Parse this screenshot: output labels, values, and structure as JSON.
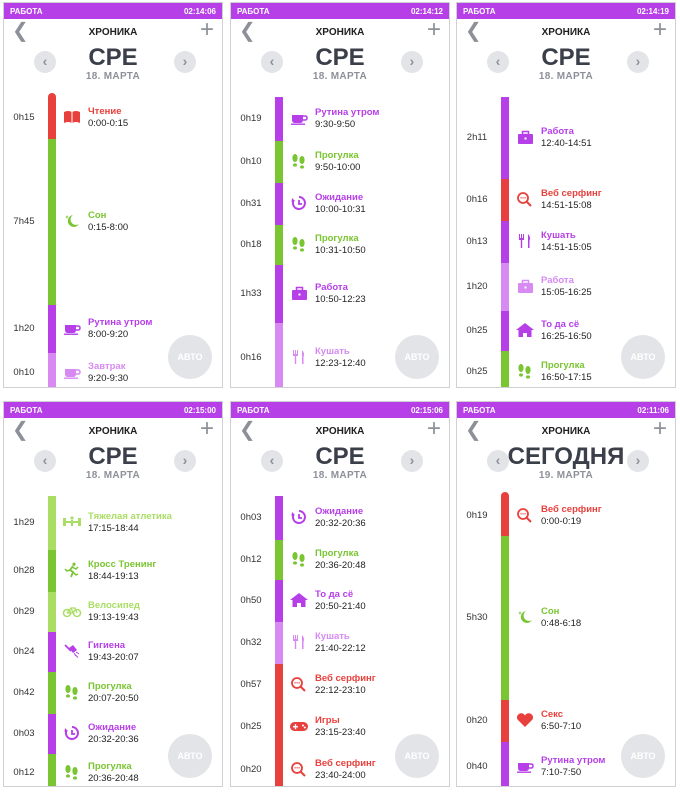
{
  "colors": {
    "purple": "#b63fe8",
    "purple_light": "#d68af2",
    "green": "#7ac532",
    "green_light": "#a9dd63",
    "red": "#e8403c",
    "red_light": "#f06a6a"
  },
  "screens": [
    {
      "status_left": "РАБОТА",
      "status_time": "02:14:06",
      "header_title": "ХРОНИКА",
      "day": "СРЕ",
      "date": "18. МАРТА",
      "auto_label": "АВТО",
      "rows": [
        {
          "duration": "0h15",
          "name": "Чтение",
          "time": "0:00-0:15",
          "icon": "book-icon",
          "color": "#e8403c",
          "top": 0,
          "h": 42
        },
        {
          "duration": "7h45",
          "name": "Сон",
          "time": "0:15-8:00",
          "icon": "moon-icon",
          "color": "#7ac532",
          "top": 42,
          "h": 166
        },
        {
          "duration": "1h20",
          "name": "Рутина утром",
          "time": "8:00-9:20",
          "icon": "cup-icon",
          "color": "#b63fe8",
          "top": 208,
          "h": 48
        },
        {
          "duration": "0h10",
          "name": "Завтрак",
          "time": "9:20-9:30",
          "icon": "cup-icon",
          "color": "#d68af2",
          "top": 256,
          "h": 40
        }
      ]
    },
    {
      "status_left": "РАБОТА",
      "status_time": "02:14:12",
      "header_title": "ХРОНИКА",
      "day": "СРЕ",
      "date": "18. МАРТА",
      "auto_label": "АВТО",
      "rows": [
        {
          "duration": "0h19",
          "name": "Рутина утром",
          "time": "9:30-9:50",
          "icon": "cup-icon",
          "color": "#b63fe8",
          "top": 0,
          "h": 44
        },
        {
          "duration": "0h10",
          "name": "Прогулка",
          "time": "9:50-10:00",
          "icon": "footsteps-icon",
          "color": "#7ac532",
          "top": 44,
          "h": 42
        },
        {
          "duration": "0h31",
          "name": "Ожидание",
          "time": "10:00-10:31",
          "icon": "clock-icon",
          "color": "#b63fe8",
          "top": 86,
          "h": 42
        },
        {
          "duration": "0h18",
          "name": "Прогулка",
          "time": "10:31-10:50",
          "icon": "footsteps-icon",
          "color": "#7ac532",
          "top": 128,
          "h": 40
        },
        {
          "duration": "1h33",
          "name": "Работа",
          "time": "10:50-12:23",
          "icon": "briefcase-icon",
          "color": "#b63fe8",
          "top": 168,
          "h": 58
        },
        {
          "duration": "0h16",
          "name": "Кушать",
          "time": "12:23-12:40",
          "icon": "cutlery-icon",
          "color": "#d68af2",
          "top": 226,
          "h": 70
        }
      ]
    },
    {
      "status_left": "РАБОТА",
      "status_time": "02:14:19",
      "header_title": "ХРОНИКА",
      "day": "СРЕ",
      "date": "18. МАРТА",
      "auto_label": "АВТО",
      "rows": [
        {
          "duration": "2h11",
          "name": "Работа",
          "time": "12:40-14:51",
          "icon": "briefcase-icon",
          "color": "#b63fe8",
          "top": 0,
          "h": 82
        },
        {
          "duration": "0h16",
          "name": "Веб серфинг",
          "time": "14:51-15:08",
          "icon": "search-icon",
          "color": "#e8403c",
          "top": 82,
          "h": 42
        },
        {
          "duration": "0h13",
          "name": "Кушать",
          "time": "14:51-15:05",
          "icon": "cutlery-icon",
          "color": "#b63fe8",
          "top": 124,
          "h": 42
        },
        {
          "duration": "1h20",
          "name": "Работа",
          "time": "15:05-16:25",
          "icon": "briefcase-icon",
          "color": "#d68af2",
          "top": 166,
          "h": 48
        },
        {
          "duration": "0h25",
          "name": "То да сё",
          "time": "16:25-16:50",
          "icon": "home-icon",
          "color": "#b63fe8",
          "top": 214,
          "h": 40
        },
        {
          "duration": "0h25",
          "name": "Прогулка",
          "time": "16:50-17:15",
          "icon": "footsteps-icon",
          "color": "#7ac532",
          "top": 254,
          "h": 42
        }
      ]
    },
    {
      "status_left": "РАБОТА",
      "status_time": "02:15:00",
      "header_title": "ХРОНИКА",
      "day": "СРЕ",
      "date": "18. МАРТА",
      "auto_label": "АВТО",
      "rows": [
        {
          "duration": "1h29",
          "name": "Тяжелая атлетика",
          "time": "17:15-18:44",
          "icon": "dumbbell-icon",
          "color": "#a9dd63",
          "top": 0,
          "h": 54
        },
        {
          "duration": "0h28",
          "name": "Кросс Тренинг",
          "time": "18:44-19:13",
          "icon": "runner-icon",
          "color": "#7ac532",
          "top": 54,
          "h": 42
        },
        {
          "duration": "0h29",
          "name": "Велосипед",
          "time": "19:13-19:43",
          "icon": "bicycle-icon",
          "color": "#a9dd63",
          "top": 96,
          "h": 40
        },
        {
          "duration": "0h24",
          "name": "Гигиена",
          "time": "19:43-20:07",
          "icon": "shower-icon",
          "color": "#b63fe8",
          "top": 136,
          "h": 40
        },
        {
          "duration": "0h42",
          "name": "Прогулка",
          "time": "20:07-20:50",
          "icon": "footsteps-icon",
          "color": "#7ac532",
          "top": 176,
          "h": 42
        },
        {
          "duration": "0h03",
          "name": "Ожидание",
          "time": "20:32-20:36",
          "icon": "clock-icon",
          "color": "#b63fe8",
          "top": 218,
          "h": 40
        },
        {
          "duration": "0h12",
          "name": "Прогулка",
          "time": "20:36-20:48",
          "icon": "footsteps-icon",
          "color": "#7ac532",
          "top": 258,
          "h": 38
        }
      ]
    },
    {
      "status_left": "РАБОТА",
      "status_time": "02:15:06",
      "header_title": "ХРОНИКА",
      "day": "СРЕ",
      "date": "18. МАРТА",
      "auto_label": "АВТО",
      "rows": [
        {
          "duration": "0h03",
          "name": "Ожидание",
          "time": "20:32-20:36",
          "icon": "clock-icon",
          "color": "#b63fe8",
          "top": 0,
          "h": 44
        },
        {
          "duration": "0h12",
          "name": "Прогулка",
          "time": "20:36-20:48",
          "icon": "footsteps-icon",
          "color": "#7ac532",
          "top": 44,
          "h": 40
        },
        {
          "duration": "0h50",
          "name": "То да сё",
          "time": "20:50-21:40",
          "icon": "home-icon",
          "color": "#b63fe8",
          "top": 84,
          "h": 42
        },
        {
          "duration": "0h32",
          "name": "Кушать",
          "time": "21:40-22:12",
          "icon": "cutlery-icon",
          "color": "#d68af2",
          "top": 126,
          "h": 42
        },
        {
          "duration": "0h57",
          "name": "Веб серфинг",
          "time": "22:12-23:10",
          "icon": "search-icon",
          "color": "#e8403c",
          "top": 168,
          "h": 42
        },
        {
          "duration": "0h25",
          "name": "Игры",
          "time": "23:15-23:40",
          "icon": "gamepad-icon",
          "color": "#e8403c",
          "top": 210,
          "h": 42
        },
        {
          "duration": "0h20",
          "name": "Веб серфинг",
          "time": "23:40-24:00",
          "icon": "search-icon",
          "color": "#e8403c",
          "top": 252,
          "h": 44
        }
      ]
    },
    {
      "status_left": "РАБОТА",
      "status_time": "02:11:06",
      "header_title": "ХРОНИКА",
      "day": "СЕГОДНЯ",
      "date": "19. МАРТА",
      "auto_label": "АВТО",
      "rows": [
        {
          "duration": "0h19",
          "name": "Веб серфинг",
          "time": "0:00-0:19",
          "icon": "search-icon",
          "color": "#e8403c",
          "top": 0,
          "h": 40
        },
        {
          "duration": "5h30",
          "name": "Сон",
          "time": "0:48-6:18",
          "icon": "moon-icon",
          "color": "#7ac532",
          "top": 40,
          "h": 164
        },
        {
          "duration": "0h20",
          "name": "Секс",
          "time": "6:50-7:10",
          "icon": "heart-icon",
          "color": "#e8403c",
          "top": 204,
          "h": 42
        },
        {
          "duration": "0h40",
          "name": "Рутина утром",
          "time": "7:10-7:50",
          "icon": "cup-icon",
          "color": "#b63fe8",
          "top": 246,
          "h": 50
        }
      ]
    }
  ]
}
